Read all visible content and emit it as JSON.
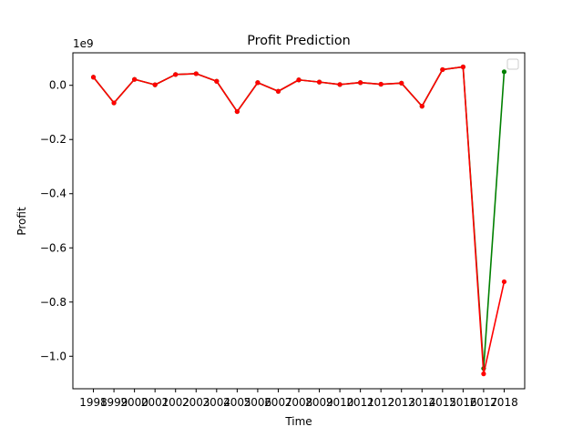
{
  "chart_data": {
    "type": "line",
    "title": "Profit Prediction",
    "xlabel": "Time",
    "ylabel": "Profit",
    "y_offset_label": "1e9",
    "x": [
      1998,
      1999,
      2000,
      2001,
      2002,
      2003,
      2004,
      2005,
      2006,
      2007,
      2008,
      2009,
      2010,
      2011,
      2012,
      2013,
      2014,
      2015,
      2016,
      2017,
      2018
    ],
    "x_tick_labels": [
      "1998",
      "1999",
      "2000",
      "2001",
      "2002",
      "2003",
      "2004",
      "2005",
      "2006",
      "2007",
      "2008",
      "2009",
      "2010",
      "2011",
      "2012",
      "2013",
      "2014",
      "2015",
      "2016",
      "2017",
      "2018"
    ],
    "y_ticks": [
      -1.0,
      -0.8,
      -0.6,
      -0.4,
      -0.2,
      0.0
    ],
    "y_tick_labels": [
      "−1.0",
      "−0.8",
      "−0.6",
      "−0.4",
      "−0.2",
      "0.0"
    ],
    "xlim": [
      1997.0,
      2019.0
    ],
    "ylim": [
      -1.12,
      0.12
    ],
    "grid": false,
    "legend": "top-right",
    "series": [
      {
        "color": "#008000",
        "values": [
          0.03,
          -0.065,
          0.022,
          0.002,
          0.04,
          0.043,
          0.015,
          -0.097,
          0.01,
          -0.022,
          0.02,
          0.012,
          0.003,
          0.01,
          0.004,
          0.008,
          -0.077,
          0.058,
          0.068,
          -1.045,
          0.05
        ]
      },
      {
        "color": "#ff0000",
        "values": [
          0.03,
          -0.065,
          0.022,
          0.002,
          0.04,
          0.043,
          0.015,
          -0.097,
          0.01,
          -0.022,
          0.02,
          0.012,
          0.003,
          0.01,
          0.004,
          0.008,
          -0.077,
          0.058,
          0.068,
          -1.065,
          -0.725
        ]
      }
    ]
  }
}
